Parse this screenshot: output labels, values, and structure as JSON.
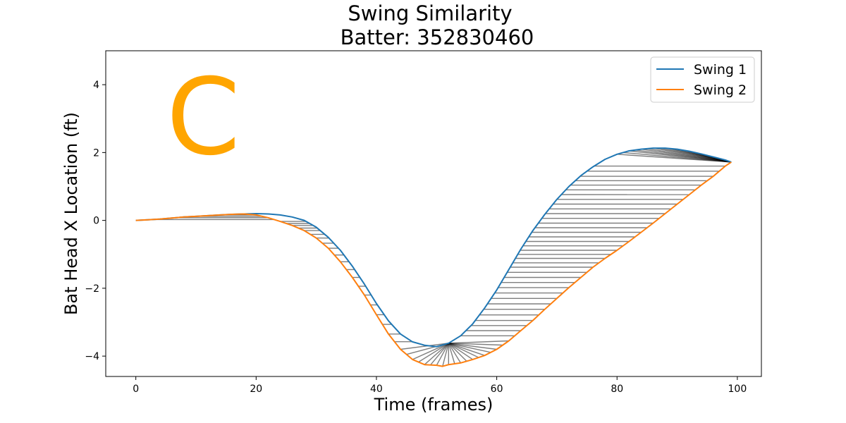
{
  "chart_data": {
    "type": "line",
    "title": "Swing Similarity",
    "subtitle": "Batter: 352830460",
    "xlabel": "Time (frames)",
    "ylabel": "Bat Head X Location (ft)",
    "xlim": [
      -5,
      104
    ],
    "ylim": [
      -4.6,
      5.0
    ],
    "xticks": [
      0,
      20,
      40,
      60,
      80,
      100
    ],
    "yticks": [
      -4,
      -2,
      0,
      2,
      4
    ],
    "xtick_labels": [
      "0",
      "20",
      "40",
      "60",
      "80",
      "100"
    ],
    "ytick_labels": [
      "−4",
      "−2",
      "0",
      "2",
      "4"
    ],
    "grid": false,
    "legend": "top-right",
    "annotation": {
      "text": "C",
      "color": "#ffa500"
    },
    "alignment_line_color": "#000000",
    "series": [
      {
        "name": "Swing 1",
        "color": "#1f77b4",
        "x": [
          0,
          2,
          4,
          6,
          8,
          10,
          12,
          14,
          16,
          18,
          20,
          22,
          24,
          26,
          28,
          30,
          32,
          34,
          36,
          38,
          40,
          42,
          44,
          46,
          48,
          50,
          52,
          54,
          56,
          58,
          60,
          62,
          64,
          66,
          68,
          70,
          72,
          74,
          76,
          78,
          80,
          82,
          84,
          86,
          88,
          90,
          92,
          94,
          96,
          98,
          99
        ],
        "y": [
          0,
          0.02,
          0.04,
          0.07,
          0.1,
          0.12,
          0.14,
          0.16,
          0.18,
          0.19,
          0.2,
          0.19,
          0.16,
          0.1,
          0.0,
          -0.2,
          -0.5,
          -0.88,
          -1.35,
          -1.88,
          -2.45,
          -2.96,
          -3.35,
          -3.58,
          -3.68,
          -3.72,
          -3.62,
          -3.4,
          -3.05,
          -2.58,
          -2.05,
          -1.45,
          -0.85,
          -0.3,
          0.18,
          0.62,
          1.0,
          1.32,
          1.58,
          1.8,
          1.95,
          2.05,
          2.1,
          2.13,
          2.13,
          2.1,
          2.04,
          1.96,
          1.87,
          1.78,
          1.72
        ]
      },
      {
        "name": "Swing 2",
        "color": "#ff7f0e",
        "x": [
          0,
          2,
          4,
          6,
          8,
          10,
          12,
          14,
          16,
          18,
          20,
          22,
          24,
          26,
          28,
          30,
          32,
          34,
          36,
          38,
          40,
          42,
          44,
          46,
          48,
          50,
          51,
          52,
          54,
          56,
          58,
          60,
          62,
          64,
          66,
          68,
          70,
          72,
          74,
          76,
          78,
          80,
          82,
          84,
          86,
          88,
          90,
          92,
          94,
          96,
          98,
          99
        ],
        "y": [
          0,
          0.02,
          0.04,
          0.07,
          0.1,
          0.12,
          0.14,
          0.16,
          0.18,
          0.19,
          0.16,
          0.08,
          -0.03,
          -0.15,
          -0.3,
          -0.52,
          -0.82,
          -1.22,
          -1.68,
          -2.2,
          -2.78,
          -3.35,
          -3.8,
          -4.1,
          -4.25,
          -4.27,
          -4.3,
          -4.25,
          -4.2,
          -4.1,
          -3.98,
          -3.8,
          -3.55,
          -3.25,
          -2.95,
          -2.62,
          -2.3,
          -1.98,
          -1.68,
          -1.38,
          -1.12,
          -0.88,
          -0.62,
          -0.35,
          -0.08,
          0.2,
          0.48,
          0.76,
          1.04,
          1.3,
          1.6,
          1.72
        ]
      }
    ]
  }
}
